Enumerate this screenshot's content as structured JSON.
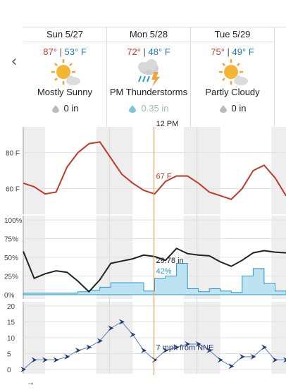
{
  "days": [
    {
      "date": "Sun 5/27",
      "hi": "87°",
      "lo": "53° F",
      "condition": "Mostly Sunny",
      "icon": "partly-sunny-icon",
      "precip": "0 in",
      "precip_icon": "drop-gray"
    },
    {
      "date": "Mon 5/28",
      "hi": "72°",
      "lo": "48° F",
      "condition": "PM Thunderstorms",
      "icon": "thunderstorm-icon",
      "precip": "0.35 in",
      "precip_icon": "drop-blue"
    },
    {
      "date": "Tue 5/29",
      "hi": "75°",
      "lo": "49° F",
      "condition": "Partly Cloudy",
      "icon": "partly-sunny-icon",
      "precip": "0 in",
      "precip_icon": "drop-gray"
    }
  ],
  "cursor": {
    "time": "12 PM",
    "temp": "67 F",
    "pressure": "29.78 in",
    "humidity": "42%",
    "wind": "7 mph from NNE"
  },
  "colors": {
    "temp_line": "#c0392b",
    "pressure_line": "#222222",
    "humidity_line": "#2a9bc4",
    "humidity_fill": "#bde3f2",
    "wind_line": "#5a7fb5",
    "wind_arrow": "#1f3a6e",
    "cursor": "#e8a060",
    "night_band": "#eeeeee"
  },
  "chart_data": [
    {
      "type": "line",
      "title": "",
      "ylabel": "",
      "yticks": [
        "80 F",
        "60 F"
      ],
      "ylim": [
        48,
        92
      ],
      "x": [
        0,
        3,
        6,
        9,
        12,
        15,
        18,
        21,
        24,
        27,
        30,
        33,
        36,
        39,
        42,
        45,
        48,
        51,
        54,
        57,
        60,
        63,
        66,
        69,
        72
      ],
      "series": [
        {
          "values": [
            63,
            61,
            57,
            58,
            72,
            80,
            85,
            86,
            77,
            68,
            63,
            59,
            57,
            64,
            67,
            67,
            63,
            58,
            56,
            54,
            60,
            70,
            73,
            66,
            56
          ]
        }
      ]
    },
    {
      "type": "line",
      "yticks": [
        "100%",
        "75%",
        "50%",
        "25%",
        "0%"
      ],
      "ylim": [
        0,
        100
      ],
      "x": [
        0,
        3,
        6,
        9,
        12,
        15,
        18,
        21,
        24,
        27,
        30,
        33,
        36,
        39,
        42,
        45,
        48,
        51,
        54,
        57,
        60,
        63,
        66,
        69,
        72
      ],
      "series": [
        {
          "values": [
            58,
            22,
            28,
            32,
            30,
            18,
            4,
            20,
            42,
            45,
            48,
            53,
            51,
            46,
            62,
            55,
            53,
            52,
            44,
            38,
            46,
            56,
            59,
            57,
            56
          ]
        },
        {
          "values": [
            2,
            2,
            2,
            2,
            2,
            4,
            6,
            10,
            16,
            16,
            16,
            5,
            22,
            25,
            42,
            8,
            4,
            8,
            5,
            3,
            25,
            35,
            15,
            5,
            3
          ]
        }
      ]
    },
    {
      "type": "line",
      "yticks": [
        "20",
        "15",
        "10",
        "5",
        "0"
      ],
      "ylim": [
        0,
        20
      ],
      "x": [
        0,
        3,
        6,
        9,
        12,
        15,
        18,
        21,
        24,
        27,
        30,
        33,
        36,
        39,
        42,
        45,
        48,
        51,
        54,
        57,
        60,
        63,
        66,
        69,
        72
      ],
      "series": [
        {
          "values": [
            0,
            3,
            3,
            3,
            4,
            6,
            7,
            9,
            13,
            15,
            11,
            6,
            3,
            6,
            7,
            8,
            8,
            6,
            3,
            1,
            4,
            4,
            7,
            3,
            3
          ]
        }
      ]
    }
  ]
}
